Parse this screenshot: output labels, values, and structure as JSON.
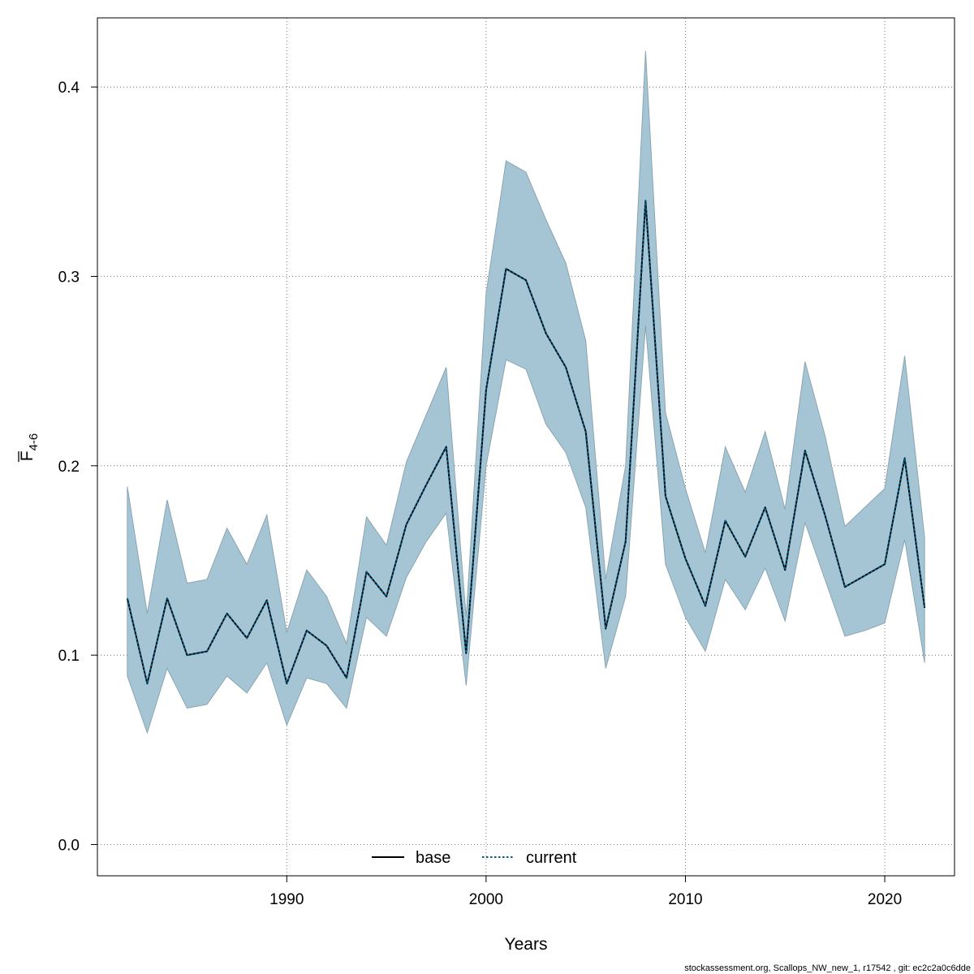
{
  "chart_data": {
    "type": "line",
    "title": "",
    "xlabel": "Years",
    "ylabel": {
      "main": "F",
      "subscript": "4-6",
      "overline": true
    },
    "xlim": [
      1980.5,
      2023.5
    ],
    "ylim": [
      -0.0165,
      0.4365
    ],
    "x_ticks": [
      1990,
      2000,
      2010,
      2020
    ],
    "x_tick_labels": [
      "1990",
      "2000",
      "2010",
      "2020"
    ],
    "y_ticks": [
      0.0,
      0.1,
      0.2,
      0.3,
      0.4
    ],
    "y_tick_labels": [
      "0.0",
      "0.1",
      "0.2",
      "0.3",
      "0.4"
    ],
    "grid": true,
    "x": [
      1982,
      1983,
      1984,
      1985,
      1986,
      1987,
      1988,
      1989,
      1990,
      1991,
      1992,
      1993,
      1994,
      1995,
      1996,
      1997,
      1998,
      1999,
      2000,
      2001,
      2002,
      2003,
      2004,
      2005,
      2006,
      2007,
      2008,
      2009,
      2010,
      2011,
      2012,
      2013,
      2014,
      2015,
      2016,
      2017,
      2018,
      2019,
      2020,
      2021,
      2022
    ],
    "band": {
      "name": "confidence interval",
      "color": "#a5c5d4",
      "edge_color": "#8aa5b2",
      "upper": [
        0.189,
        0.122,
        0.182,
        0.138,
        0.14,
        0.167,
        0.148,
        0.174,
        0.112,
        0.145,
        0.131,
        0.106,
        0.173,
        0.158,
        0.202,
        0.227,
        0.252,
        0.12,
        0.291,
        0.361,
        0.355,
        0.33,
        0.307,
        0.266,
        0.14,
        0.2,
        0.419,
        0.228,
        0.188,
        0.154,
        0.21,
        0.186,
        0.218,
        0.177,
        0.255,
        0.216,
        0.168,
        0.178,
        0.188,
        0.258,
        0.162
      ],
      "lower": [
        0.089,
        0.059,
        0.093,
        0.072,
        0.074,
        0.089,
        0.08,
        0.096,
        0.063,
        0.088,
        0.085,
        0.072,
        0.12,
        0.11,
        0.141,
        0.16,
        0.175,
        0.084,
        0.2,
        0.256,
        0.251,
        0.222,
        0.207,
        0.178,
        0.093,
        0.131,
        0.274,
        0.148,
        0.12,
        0.102,
        0.14,
        0.124,
        0.146,
        0.118,
        0.17,
        0.14,
        0.11,
        0.113,
        0.117,
        0.161,
        0.096
      ]
    },
    "series": [
      {
        "name": "base",
        "color": "#000000",
        "style": "solid",
        "values": [
          0.13,
          0.085,
          0.13,
          0.1,
          0.102,
          0.122,
          0.109,
          0.129,
          0.085,
          0.113,
          0.105,
          0.088,
          0.144,
          0.131,
          0.169,
          0.19,
          0.21,
          0.101,
          0.24,
          0.304,
          0.298,
          0.27,
          0.252,
          0.218,
          0.114,
          0.16,
          0.34,
          0.184,
          0.151,
          0.126,
          0.171,
          0.152,
          0.178,
          0.145,
          0.208,
          0.174,
          0.136,
          0.142,
          0.148,
          0.204,
          0.125
        ]
      },
      {
        "name": "current",
        "color": "#005f8a",
        "style": "dotted",
        "values": [
          0.13,
          0.085,
          0.13,
          0.1,
          0.102,
          0.122,
          0.109,
          0.129,
          0.085,
          0.113,
          0.105,
          0.088,
          0.144,
          0.131,
          0.169,
          0.19,
          0.21,
          0.101,
          0.24,
          0.304,
          0.298,
          0.27,
          0.252,
          0.218,
          0.114,
          0.16,
          0.34,
          0.184,
          0.151,
          0.126,
          0.171,
          0.152,
          0.178,
          0.145,
          0.208,
          0.174,
          0.136,
          0.142,
          0.148,
          0.204,
          0.125
        ]
      }
    ],
    "legend": {
      "placement": "bottom-center",
      "items": [
        "base",
        "current"
      ]
    },
    "footer": "stockassessment.org, Scallops_NW_new_1, r17542 , git: ec2c2a0c6dde"
  }
}
